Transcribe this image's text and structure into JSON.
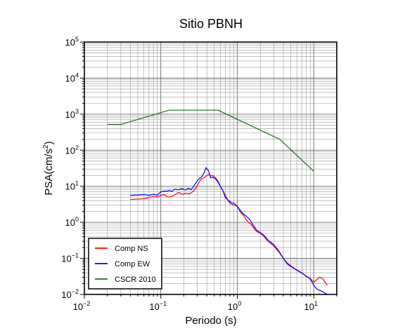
{
  "chart_data": {
    "type": "line",
    "title": "Sitio PBNH",
    "xlabel": "Periodo (s)",
    "ylabel_main": "PSA(cm/s",
    "ylabel_sup": "2",
    "ylabel_close": ")",
    "x_scale": "log",
    "y_scale": "log",
    "xlim": [
      0.01,
      20
    ],
    "ylim": [
      0.01,
      100000
    ],
    "grid": true,
    "legend_position": "bottom-left",
    "x_ticks": [
      {
        "value": 0.01,
        "base": "10",
        "exp": "−2"
      },
      {
        "value": 0.1,
        "base": "10",
        "exp": "−1"
      },
      {
        "value": 1,
        "base": "10",
        "exp": "0"
      },
      {
        "value": 10,
        "base": "10",
        "exp": "1"
      }
    ],
    "y_ticks": [
      {
        "value": 0.01,
        "base": "10",
        "exp": "−2"
      },
      {
        "value": 0.1,
        "base": "10",
        "exp": "−1"
      },
      {
        "value": 1,
        "base": "10",
        "exp": "0"
      },
      {
        "value": 10,
        "base": "10",
        "exp": "1"
      },
      {
        "value": 100,
        "base": "10",
        "exp": "2"
      },
      {
        "value": 1000,
        "base": "10",
        "exp": "3"
      },
      {
        "value": 10000,
        "base": "10",
        "exp": "4"
      },
      {
        "value": 100000,
        "base": "10",
        "exp": "5"
      }
    ],
    "series": [
      {
        "name": "Comp NS",
        "color": "#ff0000",
        "points": [
          [
            0.04,
            4.3
          ],
          [
            0.05,
            4.4
          ],
          [
            0.06,
            4.5
          ],
          [
            0.07,
            4.9
          ],
          [
            0.08,
            5.2
          ],
          [
            0.09,
            5.1
          ],
          [
            0.1,
            5.6
          ],
          [
            0.11,
            5.9
          ],
          [
            0.12,
            5.2
          ],
          [
            0.13,
            5.0
          ],
          [
            0.15,
            5.6
          ],
          [
            0.17,
            6.8
          ],
          [
            0.19,
            6.0
          ],
          [
            0.21,
            6.4
          ],
          [
            0.24,
            6.2
          ],
          [
            0.27,
            7.5
          ],
          [
            0.3,
            10.5
          ],
          [
            0.33,
            15
          ],
          [
            0.36,
            17
          ],
          [
            0.39,
            19
          ],
          [
            0.42,
            21
          ],
          [
            0.45,
            19.5
          ],
          [
            0.48,
            20
          ],
          [
            0.52,
            17
          ],
          [
            0.56,
            14
          ],
          [
            0.6,
            10
          ],
          [
            0.65,
            7.5
          ],
          [
            0.7,
            5.5
          ],
          [
            0.75,
            4.2
          ],
          [
            0.8,
            3.4
          ],
          [
            0.85,
            3.2
          ],
          [
            0.9,
            3.0
          ],
          [
            1.0,
            2.8
          ],
          [
            1.1,
            1.9
          ],
          [
            1.2,
            1.6
          ],
          [
            1.3,
            1.2
          ],
          [
            1.4,
            1.0
          ],
          [
            1.5,
            0.9
          ],
          [
            1.6,
            0.75
          ],
          [
            1.8,
            0.55
          ],
          [
            2.0,
            0.5
          ],
          [
            2.2,
            0.42
          ],
          [
            2.5,
            0.3
          ],
          [
            3.0,
            0.22
          ],
          [
            3.5,
            0.15
          ],
          [
            4.0,
            0.1
          ],
          [
            4.5,
            0.075
          ],
          [
            5.0,
            0.062
          ],
          [
            6.0,
            0.048
          ],
          [
            7.0,
            0.04
          ],
          [
            8.0,
            0.031
          ],
          [
            9.0,
            0.028
          ],
          [
            10,
            0.022
          ],
          [
            11,
            0.026
          ],
          [
            12,
            0.03
          ],
          [
            13,
            0.028
          ],
          [
            14,
            0.022
          ],
          [
            15,
            0.018
          ]
        ]
      },
      {
        "name": "Comp EW",
        "color": "#0000ff",
        "points": [
          [
            0.04,
            5.6
          ],
          [
            0.05,
            5.7
          ],
          [
            0.06,
            5.9
          ],
          [
            0.07,
            5.6
          ],
          [
            0.08,
            6.0
          ],
          [
            0.09,
            5.7
          ],
          [
            0.1,
            7.0
          ],
          [
            0.11,
            7.3
          ],
          [
            0.12,
            7.3
          ],
          [
            0.13,
            7.6
          ],
          [
            0.14,
            7.2
          ],
          [
            0.15,
            8.2
          ],
          [
            0.17,
            8.0
          ],
          [
            0.19,
            8.6
          ],
          [
            0.21,
            7.8
          ],
          [
            0.23,
            8.8
          ],
          [
            0.25,
            8.0
          ],
          [
            0.28,
            11.5
          ],
          [
            0.31,
            15.5
          ],
          [
            0.34,
            18
          ],
          [
            0.37,
            24
          ],
          [
            0.39,
            33
          ],
          [
            0.42,
            27
          ],
          [
            0.45,
            17
          ],
          [
            0.48,
            18
          ],
          [
            0.52,
            16
          ],
          [
            0.56,
            13
          ],
          [
            0.6,
            10
          ],
          [
            0.65,
            7.5
          ],
          [
            0.7,
            4.8
          ],
          [
            0.75,
            4.2
          ],
          [
            0.8,
            3.8
          ],
          [
            0.85,
            3.5
          ],
          [
            0.9,
            3.4
          ],
          [
            1.0,
            2.8
          ],
          [
            1.1,
            2.1
          ],
          [
            1.2,
            1.7
          ],
          [
            1.3,
            1.5
          ],
          [
            1.4,
            1.3
          ],
          [
            1.5,
            1.1
          ],
          [
            1.6,
            0.85
          ],
          [
            1.8,
            0.6
          ],
          [
            2.0,
            0.52
          ],
          [
            2.2,
            0.45
          ],
          [
            2.5,
            0.33
          ],
          [
            3.0,
            0.24
          ],
          [
            3.5,
            0.16
          ],
          [
            4.0,
            0.1
          ],
          [
            4.5,
            0.07
          ],
          [
            5.0,
            0.06
          ],
          [
            6.0,
            0.047
          ],
          [
            7.0,
            0.039
          ],
          [
            8.0,
            0.032
          ],
          [
            9.0,
            0.027
          ],
          [
            10,
            0.018
          ],
          [
            11,
            0.014
          ],
          [
            12,
            0.013
          ],
          [
            13,
            0.012
          ],
          [
            14,
            0.011
          ],
          [
            15,
            0.01
          ]
        ]
      },
      {
        "name": "CSCR 2010",
        "color": "#1a6e1a",
        "points": [
          [
            0.02,
            520
          ],
          [
            0.03,
            520
          ],
          [
            0.128,
            1290
          ],
          [
            0.56,
            1290
          ],
          [
            3.6,
            200
          ],
          [
            10,
            26
          ]
        ]
      }
    ]
  }
}
